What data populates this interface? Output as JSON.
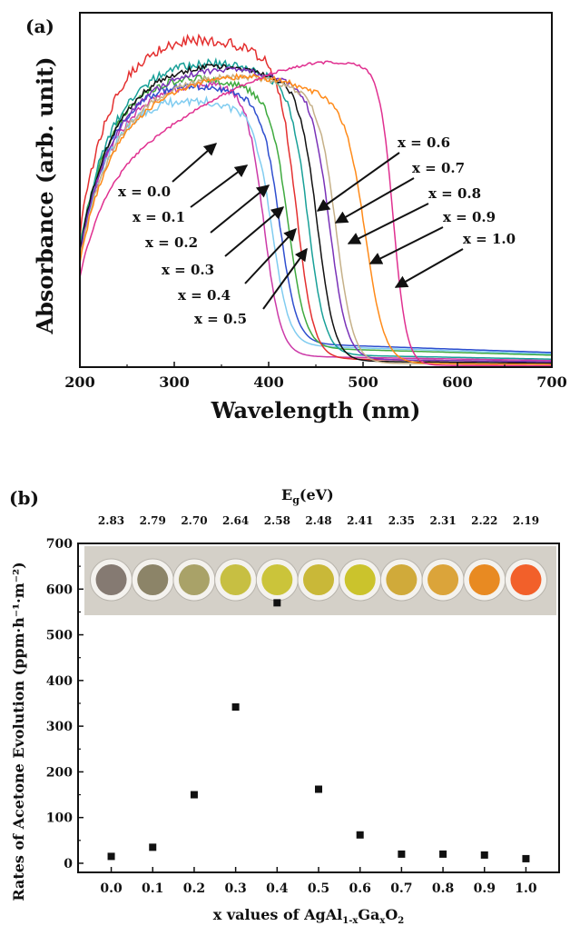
{
  "chart_data": [
    {
      "panel": "(a)",
      "type": "line",
      "xlabel": "Wavelength (nm)",
      "ylabel": "Absorbance (arb. unit)",
      "xlim": [
        200,
        700
      ],
      "xticks": [
        "200",
        "300",
        "400",
        "500",
        "600",
        "700"
      ],
      "series": [
        {
          "name": "x = 0.0",
          "color": "#cc3aa8",
          "peak_nm": 330,
          "peak": 0.8,
          "edge_nm": 395,
          "width": 9,
          "tail": 0.025,
          "noise": 0.01
        },
        {
          "name": "x = 0.1",
          "color": "#80ccf0",
          "peak_nm": 300,
          "peak": 0.76,
          "edge_nm": 404,
          "width": 9,
          "tail": 0.05,
          "noise": 0.012
        },
        {
          "name": "x = 0.2",
          "color": "#2f4fcf",
          "peak_nm": 305,
          "peak": 0.8,
          "edge_nm": 412,
          "width": 9,
          "tail": 0.055,
          "noise": 0.01
        },
        {
          "name": "x = 0.3",
          "color": "#3faa3f",
          "peak_nm": 310,
          "peak": 0.82,
          "edge_nm": 421,
          "width": 9,
          "tail": 0.045,
          "noise": 0.01
        },
        {
          "name": "x = 0.4",
          "color": "#e43030",
          "peak_nm": 315,
          "peak": 0.93,
          "edge_nm": 430,
          "width": 9,
          "tail": 0.02,
          "noise": 0.015
        },
        {
          "name": "x = 0.5",
          "color": "#18a098",
          "peak_nm": 330,
          "peak": 0.86,
          "edge_nm": 442,
          "width": 9,
          "tail": 0.03,
          "noise": 0.012
        },
        {
          "name": "x = 0.6",
          "color": "#111111",
          "peak_nm": 340,
          "peak": 0.85,
          "edge_nm": 452,
          "width": 9,
          "tail": 0.015,
          "noise": 0.008
        },
        {
          "name": "x = 0.7",
          "color": "#7a32b8",
          "peak_nm": 350,
          "peak": 0.84,
          "edge_nm": 465,
          "width": 9,
          "tail": 0.02,
          "noise": 0.008
        },
        {
          "name": "x = 0.8",
          "color": "#c5b088",
          "peak_nm": 360,
          "peak": 0.82,
          "edge_nm": 472,
          "width": 9,
          "tail": 0.01,
          "noise": 0.008
        },
        {
          "name": "x = 0.9",
          "color": "#ff8a18",
          "peak_nm": 370,
          "peak": 0.82,
          "edge_nm": 503,
          "width": 10,
          "tail": 0.01,
          "noise": 0.008
        },
        {
          "name": "x = 1.0",
          "color": "#e03090",
          "peak_nm": 470,
          "peak": 0.86,
          "edge_nm": 532,
          "width": 7,
          "tail": 0.005,
          "noise": 0.004
        }
      ]
    },
    {
      "panel": "(b)",
      "type": "scatter",
      "xlabel_main": "x values of AgAl",
      "xlabel_sub1": "1-x",
      "xlabel_mid": "Ga",
      "xlabel_sub2": "x",
      "xlabel_end": "O",
      "xlabel_sub3": "2",
      "ylabel": "Rates of Acetone Evolution (ppm·h⁻¹·m⁻²)",
      "top_axis_label_main": "E",
      "top_axis_label_sub": "g",
      "top_axis_label_end": "(eV)",
      "xlim": [
        -0.08,
        1.08
      ],
      "ylim": [
        -20,
        700
      ],
      "xticks": [
        "0.0",
        "0.1",
        "0.2",
        "0.3",
        "0.4",
        "0.5",
        "0.6",
        "0.7",
        "0.8",
        "0.9",
        "1.0"
      ],
      "yticks": [
        "0",
        "100",
        "200",
        "300",
        "400",
        "500",
        "600",
        "700"
      ],
      "eg_values": [
        "2.83",
        "2.79",
        "2.70",
        "2.64",
        "2.58",
        "2.48",
        "2.41",
        "2.35",
        "2.31",
        "2.22",
        "2.19"
      ],
      "x": [
        0.0,
        0.1,
        0.2,
        0.3,
        0.4,
        0.5,
        0.6,
        0.7,
        0.8,
        0.9,
        1.0
      ],
      "y": [
        15,
        35,
        150,
        342,
        570,
        162,
        62,
        20,
        20,
        18,
        10
      ],
      "sample_colors": [
        "#857a72",
        "#8c8468",
        "#a9a268",
        "#c7bf42",
        "#cbc43a",
        "#c9b838",
        "#cbc32c",
        "#d0aa3a",
        "#dba43a",
        "#e88a22",
        "#f2602a"
      ]
    }
  ]
}
